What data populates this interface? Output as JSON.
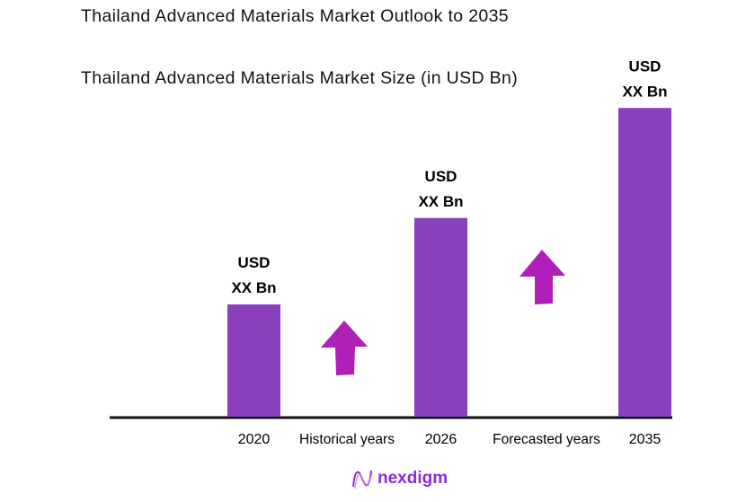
{
  "title": "Thailand Advanced Materials Market Outlook to 2035",
  "subtitle": "Thailand Advanced Materials Market Size (in USD Bn)",
  "chart_data": {
    "type": "bar",
    "title": "Thailand Advanced Materials Market Outlook to 2035",
    "subtitle": "Thailand Advanced Materials Market Size (in USD Bn)",
    "categories": [
      "2020",
      "2026",
      "2035"
    ],
    "values": [
      1.0,
      1.77,
      2.75
    ],
    "data_labels": [
      [
        "USD",
        "XX Bn"
      ],
      [
        "USD",
        "XX Bn"
      ],
      [
        "USD",
        "XX Bn"
      ]
    ],
    "period_labels": [
      "Historical years",
      "Forecasted years"
    ],
    "ylim": [
      0,
      3
    ],
    "grid": false,
    "bar_color": "#8940ba",
    "arrow_color": "#b01fb8",
    "axis_color": "#111111"
  },
  "logo": {
    "text": "nexdigm",
    "color": "#8a2be2"
  }
}
